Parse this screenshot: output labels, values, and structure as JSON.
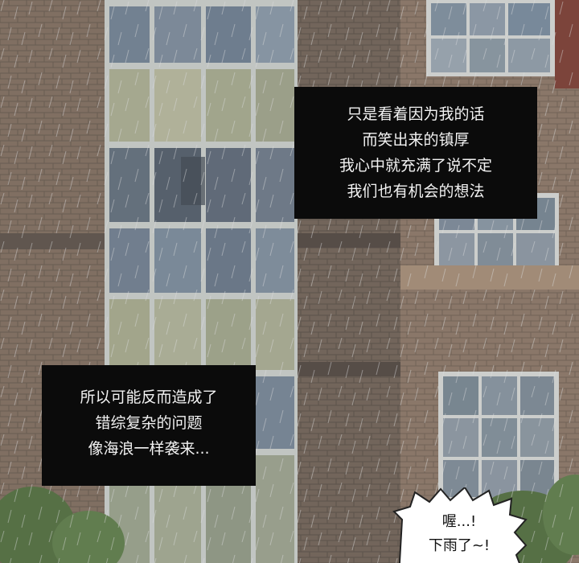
{
  "captions": {
    "top_right": {
      "lines": [
        "只是看着因为我的话",
        "而笑出来的镇厚",
        "我心中就充满了说不定",
        "我们也有机会的想法"
      ]
    },
    "bottom_left": {
      "lines": [
        "所以可能反而造成了",
        "错综复杂的问题",
        "像海浪一样袭来..."
      ]
    }
  },
  "speech_bubble": {
    "lines": [
      "喔...!",
      "下雨了~!"
    ]
  },
  "colors": {
    "brick": "#8a7462",
    "brick_dark": "#6e5d4f",
    "glass_blue": "#6f7f90",
    "glass_yellow": "#a9ab8e",
    "frame": "#c9ccc8",
    "caption_bg": "#0b0b0b",
    "caption_text": "#f2f2f2",
    "foliage": "#4f6b3a"
  }
}
